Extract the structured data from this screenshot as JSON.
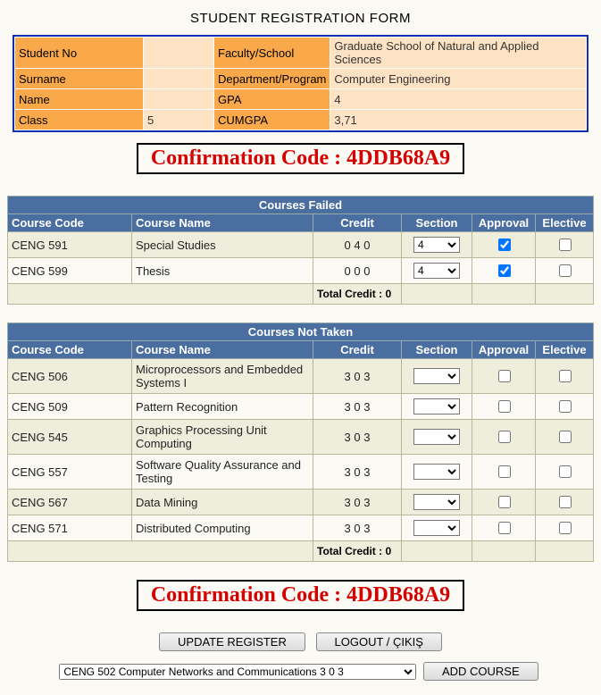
{
  "title": "STUDENT REGISTRATION FORM",
  "info": {
    "labels": {
      "studentNo": "Student No",
      "faculty": "Faculty/School",
      "surname": "Surname",
      "dept": "Department/Program",
      "name": "Name",
      "gpa": "GPA",
      "class": "Class",
      "cumgpa": "CUMGPA"
    },
    "values": {
      "studentNo": "",
      "faculty": "Graduate School of Natural and Applied Sciences",
      "surname": "",
      "dept": "Computer Engineering",
      "name": "",
      "gpa": "4",
      "class": "5",
      "cumgpa": "3,71"
    }
  },
  "confirm": {
    "prefix": "Confirmation Code : ",
    "code": "4DDB68A9"
  },
  "colHeaders": {
    "code": "Course Code",
    "name": "Course Name",
    "credit": "Credit",
    "section": "Section",
    "approval": "Approval",
    "elective": "Elective"
  },
  "failed": {
    "caption": "Courses Failed",
    "rows": [
      {
        "code": "CENG 591",
        "name": "Special Studies",
        "credit": "0 4 0",
        "section": "4",
        "approval": true,
        "elective": false
      },
      {
        "code": "CENG 599",
        "name": "Thesis",
        "credit": "0 0 0",
        "section": "4",
        "approval": true,
        "elective": false
      }
    ],
    "totalLabel": "Total Credit : 0"
  },
  "nottaken": {
    "caption": "Courses Not Taken",
    "rows": [
      {
        "code": "CENG 506",
        "name": "Microprocessors and Embedded Systems I",
        "credit": "3 0 3",
        "section": "",
        "approval": false,
        "elective": false
      },
      {
        "code": "CENG 509",
        "name": "Pattern Recognition",
        "credit": "3 0 3",
        "section": "",
        "approval": false,
        "elective": false
      },
      {
        "code": "CENG 545",
        "name": "Graphics Processing Unit Computing",
        "credit": "3 0 3",
        "section": "",
        "approval": false,
        "elective": false
      },
      {
        "code": "CENG 557",
        "name": "Software Quality Assurance and Testing",
        "credit": "3 0 3",
        "section": "",
        "approval": false,
        "elective": false
      },
      {
        "code": "CENG 567",
        "name": "Data Mining",
        "credit": "3 0 3",
        "section": "",
        "approval": false,
        "elective": false
      },
      {
        "code": "CENG 571",
        "name": "Distributed Computing",
        "credit": "3 0 3",
        "section": "",
        "approval": false,
        "elective": false
      }
    ],
    "totalLabel": "Total Credit : 0"
  },
  "buttons": {
    "update": "UPDATE REGISTER",
    "logout": "LOGOUT / ÇIKIŞ",
    "add": "ADD COURSE"
  },
  "addCourse": {
    "selected": "CENG 502 Computer Networks and Communications 3 0 3"
  }
}
